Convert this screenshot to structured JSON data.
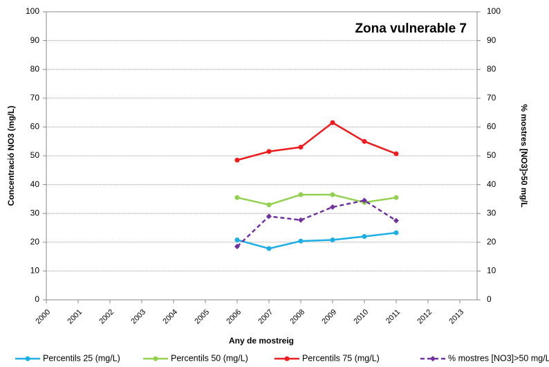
{
  "chart_data": {
    "type": "line",
    "title": "Zona vulnerable 7",
    "x_label": "Any de mostreig",
    "y_label": "Concentració NO3 (mg/L)",
    "y2_label": "% mostres [NO3]>50 mg/L",
    "categories": [
      "2000",
      "2001",
      "2002",
      "2003",
      "2004",
      "2005",
      "2006",
      "2007",
      "2008",
      "2009",
      "2010",
      "2011",
      "2012",
      "2013"
    ],
    "series": [
      {
        "name": "Percentils 25 (mg/L)",
        "color": "#1eaee6",
        "marker": "circle",
        "dash": false,
        "values": [
          null,
          null,
          null,
          null,
          null,
          null,
          20.8,
          17.8,
          20.4,
          20.8,
          22.0,
          23.3,
          null,
          null
        ]
      },
      {
        "name": "Percentils 50 (mg/L)",
        "color": "#92d050",
        "marker": "circle",
        "dash": false,
        "values": [
          null,
          null,
          null,
          null,
          null,
          null,
          35.5,
          33.0,
          36.5,
          36.5,
          33.8,
          35.5,
          null,
          null
        ]
      },
      {
        "name": "Percentils 75 (mg/L)",
        "color": "#ee1c1c",
        "marker": "circle",
        "dash": false,
        "values": [
          null,
          null,
          null,
          null,
          null,
          null,
          48.5,
          51.5,
          53.0,
          61.5,
          55.0,
          50.7,
          null,
          null
        ]
      },
      {
        "name": "% mostres [NO3]>50 mg/L",
        "color": "#7030a0",
        "marker": "diamond",
        "dash": true,
        "axis": "y2",
        "values": [
          null,
          null,
          null,
          null,
          null,
          null,
          18.5,
          29.0,
          27.7,
          32.2,
          34.5,
          27.5,
          null,
          null
        ]
      }
    ],
    "ylim": [
      0,
      100
    ],
    "yticks": [
      0,
      10,
      20,
      30,
      40,
      50,
      60,
      70,
      80,
      90,
      100
    ],
    "y2lim": [
      0,
      100
    ],
    "y2ticks": [
      0,
      10,
      20,
      30,
      40,
      50,
      60,
      70,
      80,
      90,
      100
    ],
    "grid": true,
    "legend": "bottom"
  }
}
